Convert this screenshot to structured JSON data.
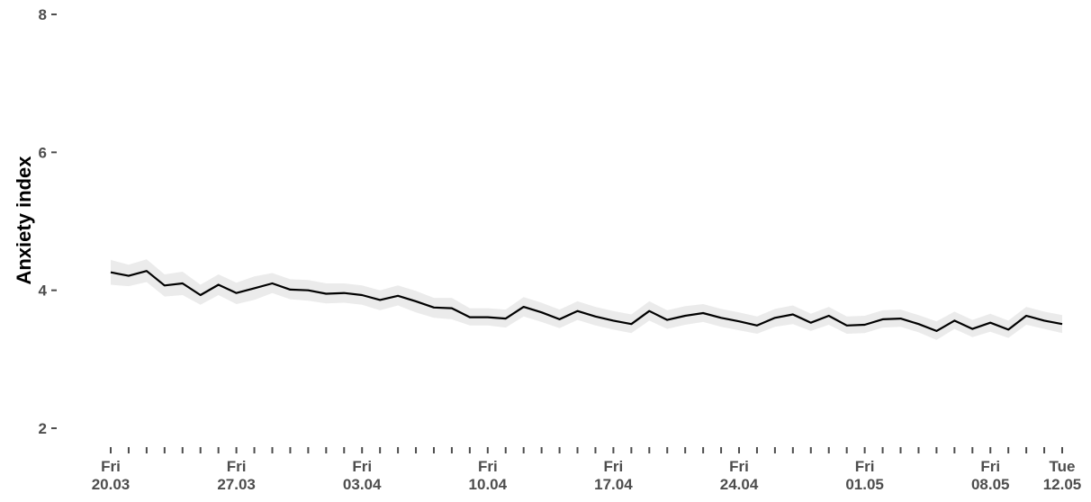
{
  "chart_data": {
    "type": "line",
    "title": "",
    "xlabel": "",
    "ylabel": "Anxiety index",
    "ylim": [
      2,
      8
    ],
    "yticks": [
      2,
      4,
      6,
      8
    ],
    "grid": false,
    "legend": "none",
    "x_tick_labels": [
      {
        "day": "Fri",
        "date": "20.03"
      },
      {
        "day": "Fri",
        "date": "27.03"
      },
      {
        "day": "Fri",
        "date": "03.04"
      },
      {
        "day": "Fri",
        "date": "10.04"
      },
      {
        "day": "Fri",
        "date": "17.04"
      },
      {
        "day": "Fri",
        "date": "24.04"
      },
      {
        "day": "Fri",
        "date": "01.05"
      },
      {
        "day": "Fri",
        "date": "08.05"
      },
      {
        "day": "Tue",
        "date": "12.05"
      }
    ],
    "x": [
      "20.03",
      "21.03",
      "22.03",
      "23.03",
      "24.03",
      "25.03",
      "26.03",
      "27.03",
      "28.03",
      "29.03",
      "30.03",
      "31.03",
      "01.04",
      "02.04",
      "03.04",
      "04.04",
      "05.04",
      "06.04",
      "07.04",
      "08.04",
      "09.04",
      "10.04",
      "11.04",
      "12.04",
      "13.04",
      "14.04",
      "15.04",
      "16.04",
      "17.04",
      "18.04",
      "19.04",
      "20.04",
      "21.04",
      "22.04",
      "23.04",
      "24.04",
      "25.04",
      "26.04",
      "27.04",
      "28.04",
      "29.04",
      "30.04",
      "01.05",
      "02.05",
      "03.05",
      "04.05",
      "05.05",
      "06.05",
      "07.05",
      "08.05",
      "09.05",
      "10.05",
      "11.05",
      "12.05"
    ],
    "series": [
      {
        "values": [
          4.26,
          4.21,
          4.28,
          4.07,
          4.1,
          3.93,
          4.08,
          3.96,
          4.03,
          4.1,
          4.01,
          4.0,
          3.95,
          3.96,
          3.93,
          3.86,
          3.92,
          3.84,
          3.75,
          3.74,
          3.61,
          3.61,
          3.59,
          3.76,
          3.68,
          3.58,
          3.7,
          3.62,
          3.56,
          3.51,
          3.7,
          3.57,
          3.63,
          3.67,
          3.6,
          3.55,
          3.49,
          3.6,
          3.65,
          3.53,
          3.63,
          3.49,
          3.5,
          3.58,
          3.59,
          3.51,
          3.41,
          3.56,
          3.44,
          3.53,
          3.43,
          3.63,
          3.56,
          3.51
        ],
        "lower": [
          4.08,
          4.06,
          4.12,
          3.91,
          3.93,
          3.79,
          3.93,
          3.8,
          3.86,
          3.96,
          3.87,
          3.85,
          3.81,
          3.82,
          3.79,
          3.71,
          3.78,
          3.68,
          3.6,
          3.58,
          3.49,
          3.49,
          3.46,
          3.62,
          3.54,
          3.45,
          3.57,
          3.49,
          3.43,
          3.38,
          3.56,
          3.44,
          3.5,
          3.54,
          3.47,
          3.42,
          3.37,
          3.47,
          3.51,
          3.41,
          3.5,
          3.37,
          3.38,
          3.46,
          3.47,
          3.39,
          3.28,
          3.44,
          3.32,
          3.4,
          3.31,
          3.5,
          3.44,
          3.38
        ],
        "upper": [
          4.44,
          4.37,
          4.45,
          4.23,
          4.27,
          4.08,
          4.23,
          4.11,
          4.2,
          4.25,
          4.16,
          4.15,
          4.1,
          4.1,
          4.07,
          4.0,
          4.07,
          3.99,
          3.89,
          3.89,
          3.74,
          3.74,
          3.72,
          3.9,
          3.82,
          3.72,
          3.84,
          3.76,
          3.7,
          3.65,
          3.84,
          3.71,
          3.77,
          3.8,
          3.73,
          3.68,
          3.62,
          3.73,
          3.78,
          3.66,
          3.76,
          3.62,
          3.63,
          3.71,
          3.72,
          3.64,
          3.55,
          3.69,
          3.57,
          3.66,
          3.56,
          3.76,
          3.69,
          3.64
        ]
      }
    ],
    "colors": {
      "line": "#000000",
      "band": "#ebebeb",
      "tick_text": "#4d4d4d",
      "axis_title": "#000000"
    }
  }
}
